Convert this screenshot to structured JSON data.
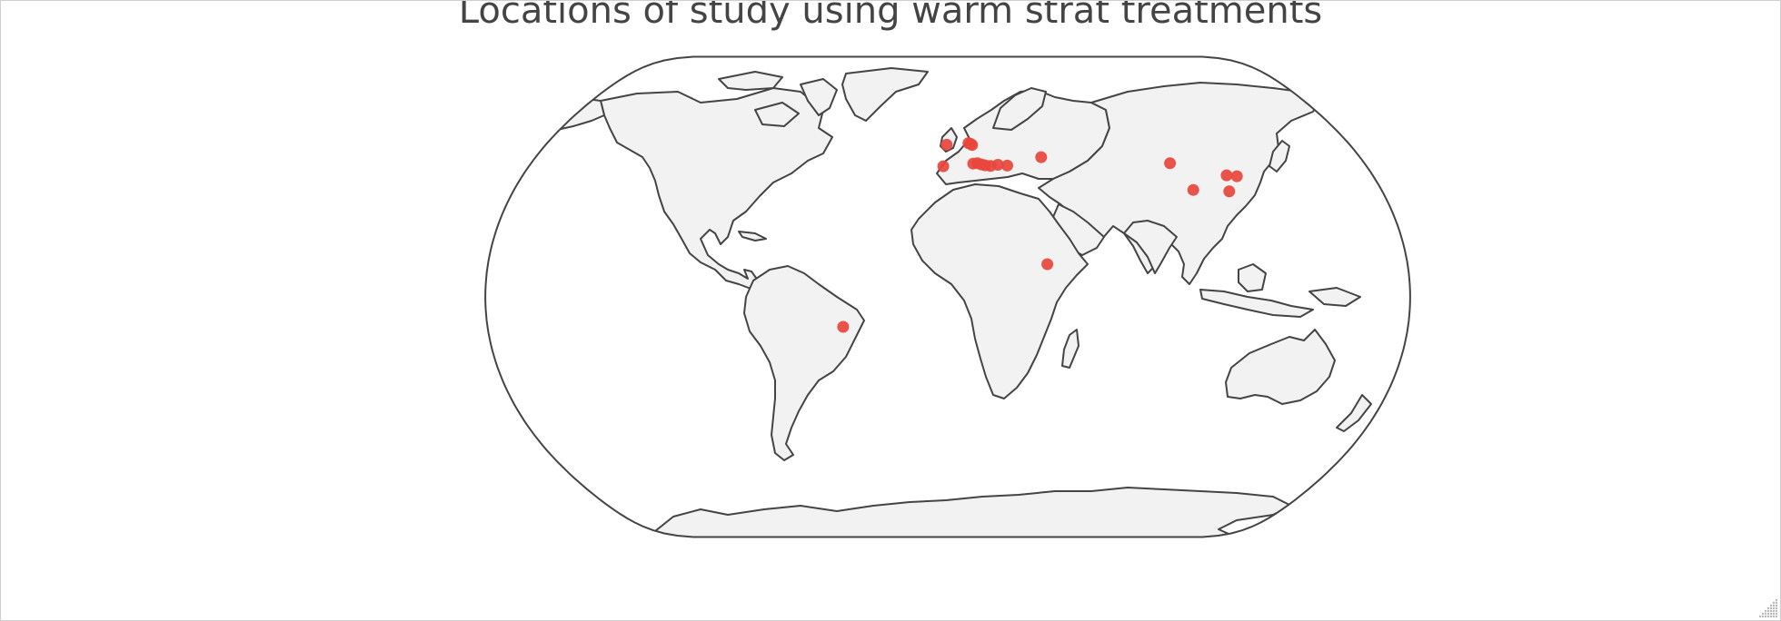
{
  "page": {
    "title": "Locations of study using warm strat treatments"
  },
  "map": {
    "projection": "natural-earth",
    "land_color": "#f2f2f2",
    "coastline_color": "#444444",
    "marker_color": "#e8463c",
    "locations": [
      {
        "lat": 51.3,
        "lon": -0.5
      },
      {
        "lat": 51.9,
        "lon": 9.3
      },
      {
        "lat": 51.6,
        "lon": 10.3
      },
      {
        "lat": 51.2,
        "lon": 10.9
      },
      {
        "lat": 43.9,
        "lon": -1.9
      },
      {
        "lat": 44.8,
        "lon": 11.0
      },
      {
        "lat": 44.9,
        "lon": 12.8
      },
      {
        "lat": 44.5,
        "lon": 14.5
      },
      {
        "lat": 44.2,
        "lon": 16.1
      },
      {
        "lat": 44.0,
        "lon": 18.4
      },
      {
        "lat": 44.4,
        "lon": 21.6
      },
      {
        "lat": 44.1,
        "lon": 25.6
      },
      {
        "lat": 47.0,
        "lon": 40.8
      },
      {
        "lat": 44.9,
        "lon": 96.0
      },
      {
        "lat": 35.9,
        "lon": 101.9
      },
      {
        "lat": 35.4,
        "lon": 116.6
      },
      {
        "lat": 40.8,
        "lon": 118.1
      },
      {
        "lat": 40.5,
        "lon": 122.3
      },
      {
        "lat": 11.0,
        "lon": 39.0
      },
      {
        "lat": -10.1,
        "lon": -40.9
      }
    ]
  }
}
